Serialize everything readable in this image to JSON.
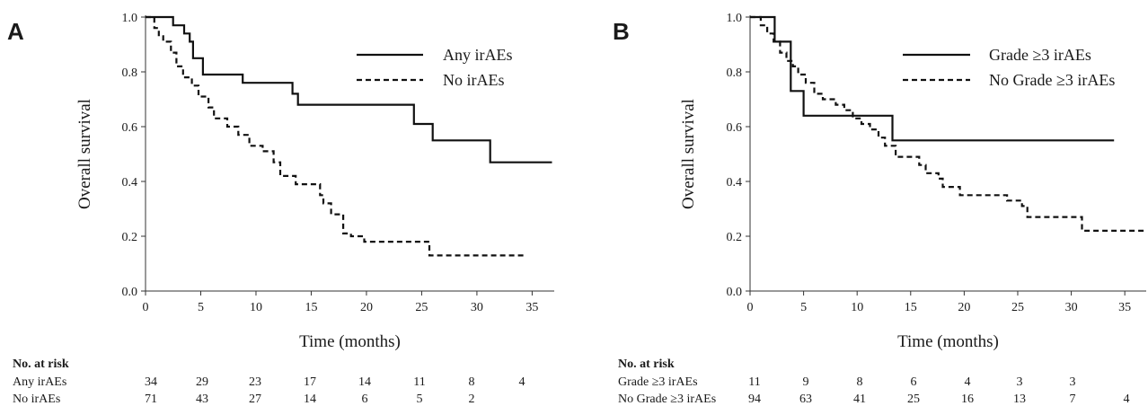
{
  "chart_data": [
    {
      "type": "line",
      "panel": "A",
      "xlabel": "Time (months)",
      "ylabel": "Overall survival",
      "xlim": [
        0,
        37
      ],
      "ylim": [
        0,
        1
      ],
      "xticks": [
        "0",
        "5",
        "10",
        "15",
        "20",
        "25",
        "30",
        "35"
      ],
      "yticks": [
        "0.0",
        "0.2",
        "0.4",
        "0.6",
        "0.8",
        "1.0"
      ],
      "legend_position": "top-right",
      "series": [
        {
          "name": "Any irAEs",
          "style": "solid",
          "points": [
            [
              0,
              1.0
            ],
            [
              2.5,
              1.0
            ],
            [
              2.5,
              0.97
            ],
            [
              3.5,
              0.97
            ],
            [
              3.5,
              0.94
            ],
            [
              4.0,
              0.94
            ],
            [
              4.0,
              0.91
            ],
            [
              4.3,
              0.91
            ],
            [
              4.3,
              0.85
            ],
            [
              5.2,
              0.85
            ],
            [
              5.2,
              0.79
            ],
            [
              8.8,
              0.79
            ],
            [
              8.8,
              0.76
            ],
            [
              13.3,
              0.76
            ],
            [
              13.3,
              0.72
            ],
            [
              13.8,
              0.72
            ],
            [
              13.8,
              0.68
            ],
            [
              24.3,
              0.68
            ],
            [
              24.3,
              0.61
            ],
            [
              26.0,
              0.61
            ],
            [
              26.0,
              0.55
            ],
            [
              31.2,
              0.55
            ],
            [
              31.2,
              0.47
            ],
            [
              36.8,
              0.47
            ]
          ]
        },
        {
          "name": "No irAEs",
          "style": "dashed",
          "points": [
            [
              0,
              1.0
            ],
            [
              0.8,
              1.0
            ],
            [
              0.8,
              0.96
            ],
            [
              1.2,
              0.96
            ],
            [
              1.2,
              0.93
            ],
            [
              1.6,
              0.93
            ],
            [
              1.6,
              0.91
            ],
            [
              2.3,
              0.91
            ],
            [
              2.3,
              0.87
            ],
            [
              2.8,
              0.87
            ],
            [
              2.8,
              0.82
            ],
            [
              3.4,
              0.82
            ],
            [
              3.4,
              0.78
            ],
            [
              4.2,
              0.78
            ],
            [
              4.2,
              0.75
            ],
            [
              4.8,
              0.75
            ],
            [
              4.8,
              0.71
            ],
            [
              5.7,
              0.71
            ],
            [
              5.7,
              0.67
            ],
            [
              6.2,
              0.67
            ],
            [
              6.2,
              0.63
            ],
            [
              7.4,
              0.63
            ],
            [
              7.4,
              0.6
            ],
            [
              8.4,
              0.6
            ],
            [
              8.4,
              0.57
            ],
            [
              9.4,
              0.57
            ],
            [
              9.4,
              0.53
            ],
            [
              10.6,
              0.53
            ],
            [
              10.6,
              0.51
            ],
            [
              11.6,
              0.51
            ],
            [
              11.6,
              0.47
            ],
            [
              12.2,
              0.47
            ],
            [
              12.2,
              0.42
            ],
            [
              13.6,
              0.42
            ],
            [
              13.6,
              0.39
            ],
            [
              15.8,
              0.39
            ],
            [
              15.8,
              0.35
            ],
            [
              16.1,
              0.35
            ],
            [
              16.1,
              0.32
            ],
            [
              16.8,
              0.32
            ],
            [
              16.8,
              0.28
            ],
            [
              17.9,
              0.28
            ],
            [
              17.9,
              0.21
            ],
            [
              18.6,
              0.21
            ],
            [
              18.6,
              0.2
            ],
            [
              19.8,
              0.2
            ],
            [
              19.8,
              0.18
            ],
            [
              25.7,
              0.18
            ],
            [
              25.7,
              0.13
            ],
            [
              34.5,
              0.13
            ]
          ]
        }
      ],
      "risk_table": {
        "heading": "No. at risk",
        "rows": [
          {
            "label": "Any irAEs",
            "values": [
              "34",
              "29",
              "23",
              "17",
              "14",
              "11",
              "8",
              "4"
            ]
          },
          {
            "label": "No irAEs",
            "values": [
              "71",
              "43",
              "27",
              "14",
              "6",
              "5",
              "2",
              ""
            ]
          }
        ]
      }
    },
    {
      "type": "line",
      "panel": "B",
      "xlabel": "Time (months)",
      "ylabel": "Overall survival",
      "xlim": [
        0,
        37
      ],
      "ylim": [
        0,
        1
      ],
      "xticks": [
        "0",
        "5",
        "10",
        "15",
        "20",
        "25",
        "30",
        "35"
      ],
      "yticks": [
        "0.0",
        "0.2",
        "0.4",
        "0.6",
        "0.8",
        "1.0"
      ],
      "legend_position": "top-right",
      "series": [
        {
          "name": "Grade ≥3 irAEs",
          "style": "solid",
          "points": [
            [
              0,
              1.0
            ],
            [
              2.3,
              1.0
            ],
            [
              2.3,
              0.91
            ],
            [
              3.8,
              0.91
            ],
            [
              3.8,
              0.73
            ],
            [
              5.0,
              0.73
            ],
            [
              5.0,
              0.64
            ],
            [
              13.3,
              0.64
            ],
            [
              13.3,
              0.55
            ],
            [
              34.0,
              0.55
            ]
          ]
        },
        {
          "name": "No Grade ≥3 irAEs",
          "style": "dashed",
          "points": [
            [
              0,
              1.0
            ],
            [
              1.0,
              1.0
            ],
            [
              1.0,
              0.97
            ],
            [
              1.6,
              0.97
            ],
            [
              1.6,
              0.94
            ],
            [
              2.2,
              0.94
            ],
            [
              2.2,
              0.91
            ],
            [
              2.8,
              0.91
            ],
            [
              2.8,
              0.87
            ],
            [
              3.4,
              0.87
            ],
            [
              3.4,
              0.84
            ],
            [
              4.0,
              0.84
            ],
            [
              4.0,
              0.82
            ],
            [
              4.5,
              0.82
            ],
            [
              4.5,
              0.79
            ],
            [
              5.2,
              0.79
            ],
            [
              5.2,
              0.76
            ],
            [
              6.0,
              0.76
            ],
            [
              6.0,
              0.72
            ],
            [
              6.8,
              0.72
            ],
            [
              6.8,
              0.7
            ],
            [
              8.0,
              0.7
            ],
            [
              8.0,
              0.68
            ],
            [
              8.8,
              0.68
            ],
            [
              8.8,
              0.66
            ],
            [
              9.6,
              0.66
            ],
            [
              9.6,
              0.63
            ],
            [
              10.4,
              0.63
            ],
            [
              10.4,
              0.61
            ],
            [
              11.2,
              0.61
            ],
            [
              11.2,
              0.59
            ],
            [
              12.0,
              0.59
            ],
            [
              12.0,
              0.56
            ],
            [
              12.6,
              0.56
            ],
            [
              12.6,
              0.53
            ],
            [
              13.6,
              0.53
            ],
            [
              13.6,
              0.49
            ],
            [
              15.8,
              0.49
            ],
            [
              15.8,
              0.46
            ],
            [
              16.4,
              0.46
            ],
            [
              16.4,
              0.43
            ],
            [
              17.6,
              0.43
            ],
            [
              17.6,
              0.41
            ],
            [
              18.0,
              0.41
            ],
            [
              18.0,
              0.38
            ],
            [
              19.6,
              0.38
            ],
            [
              19.6,
              0.35
            ],
            [
              24.0,
              0.35
            ],
            [
              24.0,
              0.33
            ],
            [
              25.4,
              0.33
            ],
            [
              25.4,
              0.31
            ],
            [
              25.9,
              0.31
            ],
            [
              25.9,
              0.27
            ],
            [
              31.0,
              0.27
            ],
            [
              31.0,
              0.22
            ],
            [
              37.0,
              0.22
            ]
          ]
        }
      ],
      "risk_table": {
        "heading": "No. at risk",
        "rows": [
          {
            "label": "Grade ≥3 irAEs",
            "values": [
              "11",
              "9",
              "8",
              "6",
              "4",
              "3",
              "3",
              ""
            ]
          },
          {
            "label": "No Grade ≥3 irAEs",
            "values": [
              "94",
              "63",
              "41",
              "25",
              "16",
              "13",
              "7",
              "4"
            ]
          }
        ]
      }
    }
  ]
}
